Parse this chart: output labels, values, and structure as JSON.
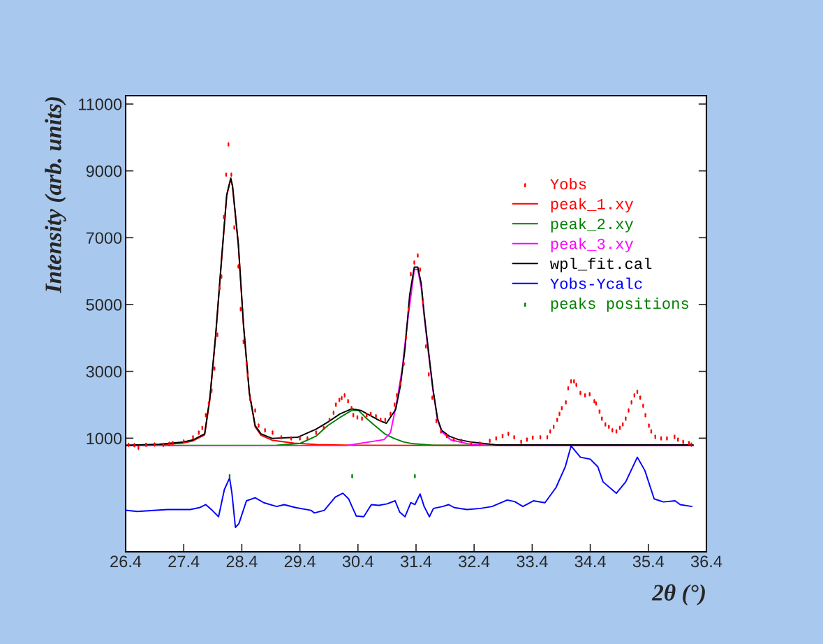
{
  "chart_data": {
    "type": "line",
    "xlabel": "2θ (°)",
    "ylabel": "Intensity (arb. units)",
    "xlim": [
      26.4,
      36.4
    ],
    "xticks": [
      26.4,
      27.4,
      28.4,
      29.4,
      30.4,
      31.4,
      32.4,
      33.4,
      34.4,
      35.4,
      36.4
    ],
    "ylim": [
      -2400,
      11250
    ],
    "yticks": [
      1000,
      3000,
      5000,
      7000,
      9000,
      11000
    ],
    "legend": "top right",
    "series": [
      {
        "name": "Yobs",
        "type": "scatter",
        "color": "#ff0000",
        "x": [
          26.45,
          26.55,
          26.62,
          26.75,
          26.9,
          27.05,
          27.15,
          27.21,
          27.4,
          27.56,
          27.66,
          27.72,
          27.78,
          27.83,
          27.88,
          27.93,
          27.98,
          28.02,
          28.05,
          28.09,
          28.13,
          28.17,
          28.22,
          28.27,
          28.34,
          28.38,
          28.43,
          28.48,
          28.5,
          28.54,
          28.63,
          28.69,
          28.8,
          28.93,
          29.08,
          29.25,
          29.4,
          29.53,
          29.68,
          29.81,
          29.91,
          29.98,
          30.02,
          30.08,
          30.12,
          30.17,
          30.23,
          30.29,
          30.32,
          30.39,
          30.47,
          30.55,
          30.62,
          30.71,
          30.79,
          30.87,
          30.96,
          31.03,
          31.07,
          31.13,
          31.19,
          31.23,
          31.27,
          31.31,
          31.37,
          31.43,
          31.47,
          31.52,
          31.57,
          31.62,
          31.68,
          31.75,
          31.83,
          31.93,
          32.05,
          32.18,
          32.35,
          32.5,
          32.67,
          32.78,
          32.89,
          32.99,
          33.09,
          33.21,
          33.31,
          33.41,
          33.54,
          33.66,
          33.71,
          33.77,
          33.83,
          33.87,
          33.91,
          33.98,
          34.02,
          34.07,
          34.12,
          34.16,
          34.23,
          34.31,
          34.39,
          34.47,
          34.5,
          34.56,
          34.6,
          34.66,
          34.72,
          34.78,
          34.85,
          34.91,
          34.96,
          35.01,
          35.06,
          35.11,
          35.16,
          35.21,
          35.26,
          35.31,
          35.35,
          35.41,
          35.45,
          35.52,
          35.62,
          35.72,
          35.85,
          35.91,
          36.0,
          36.1,
          36.14
        ],
        "values": [
          800,
          790,
          713,
          800,
          810,
          800,
          830,
          854,
          902,
          1027,
          1167,
          1307,
          1690,
          2040,
          2423,
          3086,
          4096,
          5491,
          5839,
          7617,
          8887,
          9793,
          8887,
          7304,
          6140,
          4864,
          3887,
          3224,
          2876,
          2178,
          1831,
          1377,
          1237,
          1167,
          1027,
          994,
          994,
          994,
          1167,
          1307,
          1550,
          1760,
          2004,
          2144,
          2199,
          2282,
          2109,
          1900,
          1690,
          1621,
          1586,
          1690,
          1726,
          1655,
          1550,
          1550,
          1726,
          2004,
          2282,
          2632,
          3224,
          4027,
          4864,
          5910,
          6257,
          6467,
          6048,
          5073,
          3747,
          2910,
          2213,
          1517,
          1203,
          1063,
          958,
          923,
          850,
          840,
          923,
          994,
          1063,
          1132,
          1027,
          889,
          958,
          1015,
          1027,
          1027,
          1203,
          1341,
          1550,
          1726,
          1900,
          2073,
          2492,
          2701,
          2701,
          2596,
          2354,
          2282,
          2318,
          2109,
          2040,
          1795,
          1586,
          1412,
          1341,
          1237,
          1203,
          1307,
          1412,
          1586,
          1831,
          2073,
          2282,
          2387,
          2213,
          1969,
          1690,
          1377,
          1203,
          1042,
          994,
          994,
          1042,
          958,
          889,
          854,
          805
        ]
      },
      {
        "name": "peak_1.xy",
        "color": "#ff0000",
        "x": [
          26.4,
          26.98,
          27.37,
          27.56,
          27.76,
          27.85,
          27.95,
          28.05,
          28.14,
          28.21,
          28.24,
          28.34,
          28.43,
          28.53,
          28.63,
          28.73,
          28.92,
          29.3,
          29.7,
          30.3,
          31.5,
          36.17
        ],
        "values": [
          785,
          800,
          850,
          920,
          1100,
          2150,
          4050,
          6300,
          8250,
          8750,
          8530,
          6790,
          4350,
          2330,
          1340,
          1090,
          940,
          850,
          810,
          790,
          785,
          785
        ]
      },
      {
        "name": "peak_2.xy",
        "color": "#008000",
        "x": [
          26.4,
          29.0,
          29.4,
          29.68,
          29.88,
          30.09,
          30.29,
          30.41,
          30.53,
          30.69,
          30.86,
          31.02,
          31.18,
          31.35,
          31.7,
          36.17
        ],
        "values": [
          780,
          790,
          840,
          1063,
          1377,
          1620,
          1830,
          1830,
          1620,
          1377,
          1132,
          994,
          889,
          833,
          790,
          780
        ]
      },
      {
        "name": "peak_3.xy",
        "color": "#ff00ff",
        "x": [
          26.4,
          30.2,
          30.6,
          30.85,
          30.96,
          31.06,
          31.16,
          31.24,
          31.37,
          31.43,
          31.49,
          31.54,
          31.61,
          31.69,
          31.77,
          31.84,
          32.0,
          32.3,
          32.6,
          36.17
        ],
        "values": [
          780,
          780,
          889,
          958,
          1167,
          2004,
          3050,
          4300,
          6050,
          6050,
          5500,
          4650,
          3600,
          2450,
          1550,
          1200,
          950,
          830,
          790,
          780
        ]
      },
      {
        "name": "wpl_fit.cal",
        "color": "#000000",
        "x": [
          26.4,
          26.98,
          27.37,
          27.56,
          27.76,
          27.85,
          27.95,
          28.05,
          28.14,
          28.21,
          28.24,
          28.34,
          28.43,
          28.53,
          28.63,
          28.73,
          28.92,
          29.36,
          29.68,
          29.88,
          30.09,
          30.29,
          30.45,
          30.6,
          30.77,
          30.89,
          31.05,
          31.13,
          31.21,
          31.29,
          31.37,
          31.43,
          31.49,
          31.54,
          31.61,
          31.69,
          31.77,
          31.84,
          31.97,
          32.13,
          32.33,
          32.79,
          36.17
        ],
        "values": [
          790,
          820,
          880,
          950,
          1130,
          2213,
          4096,
          6335,
          8280,
          8782,
          8558,
          6816,
          4374,
          2360,
          1377,
          1132,
          994,
          1027,
          1272,
          1481,
          1726,
          1879,
          1831,
          1690,
          1529,
          1446,
          1864,
          2563,
          3678,
          5282,
          6119,
          6119,
          5630,
          4724,
          3678,
          2492,
          1586,
          1237,
          1063,
          958,
          889,
          800,
          800
        ]
      },
      {
        "name": "Yobs-Ycalc",
        "color": "#0000ff",
        "x": [
          26.4,
          26.6,
          27.12,
          27.51,
          27.67,
          27.78,
          27.89,
          28.0,
          28.1,
          28.19,
          28.23,
          28.29,
          28.35,
          28.48,
          28.63,
          28.78,
          29.0,
          29.13,
          29.33,
          29.59,
          29.65,
          29.82,
          30.01,
          30.14,
          30.24,
          30.37,
          30.5,
          30.63,
          30.76,
          30.9,
          31.04,
          31.12,
          31.21,
          31.31,
          31.38,
          31.47,
          31.54,
          31.63,
          31.7,
          31.86,
          31.96,
          32.06,
          32.28,
          32.51,
          32.71,
          32.97,
          33.1,
          33.24,
          33.42,
          33.62,
          33.81,
          33.97,
          34.07,
          34.23,
          34.4,
          34.53,
          34.62,
          34.85,
          35.01,
          35.21,
          35.34,
          35.5,
          35.66,
          35.86,
          35.95,
          36.15
        ],
        "values": [
          -1158,
          -1192,
          -1135,
          -1135,
          -1078,
          -988,
          -1158,
          -1350,
          -534,
          -194,
          -647,
          -1668,
          -1555,
          -874,
          -783,
          -931,
          -1044,
          -988,
          -1078,
          -1158,
          -1237,
          -1158,
          -761,
          -647,
          -817,
          -1328,
          -1350,
          -988,
          -1011,
          -965,
          -874,
          -1214,
          -1350,
          -931,
          -988,
          -670,
          -1044,
          -1350,
          -1101,
          -1044,
          -988,
          -1078,
          -1135,
          -1101,
          -1044,
          -851,
          -897,
          -1044,
          -874,
          -931,
          -477,
          146,
          770,
          430,
          373,
          146,
          -307,
          -647,
          -307,
          430,
          33,
          -817,
          -908,
          -874,
          -988,
          -1044
        ]
      },
      {
        "name": "peaks positions",
        "type": "scatter",
        "color": "#008000",
        "x": [
          28.19,
          30.3,
          31.38
        ],
        "values": [
          -137,
          -137,
          -137
        ]
      }
    ]
  }
}
